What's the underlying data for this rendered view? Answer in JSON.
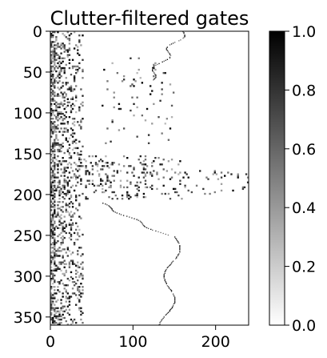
{
  "chart_data": [
    {
      "type": "heatmap",
      "title": "Clutter-filtered gates",
      "xlabel": "",
      "ylabel": "",
      "x_ticks": [
        "0",
        "100",
        "200"
      ],
      "x_tick_values": [
        0,
        100,
        200
      ],
      "y_ticks": [
        "0",
        "50",
        "100",
        "150",
        "200",
        "250",
        "300",
        "350"
      ],
      "y_tick_values": [
        0,
        50,
        100,
        150,
        200,
        250,
        300,
        350
      ],
      "xlim": [
        0,
        240
      ],
      "ylim": [
        360,
        0
      ],
      "colormap": "gray_r",
      "color_range": [
        0.0,
        1.0
      ],
      "colorbar_ticks": [
        "0.0",
        "0.2",
        "0.4",
        "0.6",
        "0.8",
        "1.0"
      ],
      "colorbar_tick_values": [
        0.0,
        0.2,
        0.4,
        0.6,
        0.8,
        1.0
      ],
      "colors": {
        "low": "#ffffff",
        "high": "#000000"
      }
    }
  ]
}
